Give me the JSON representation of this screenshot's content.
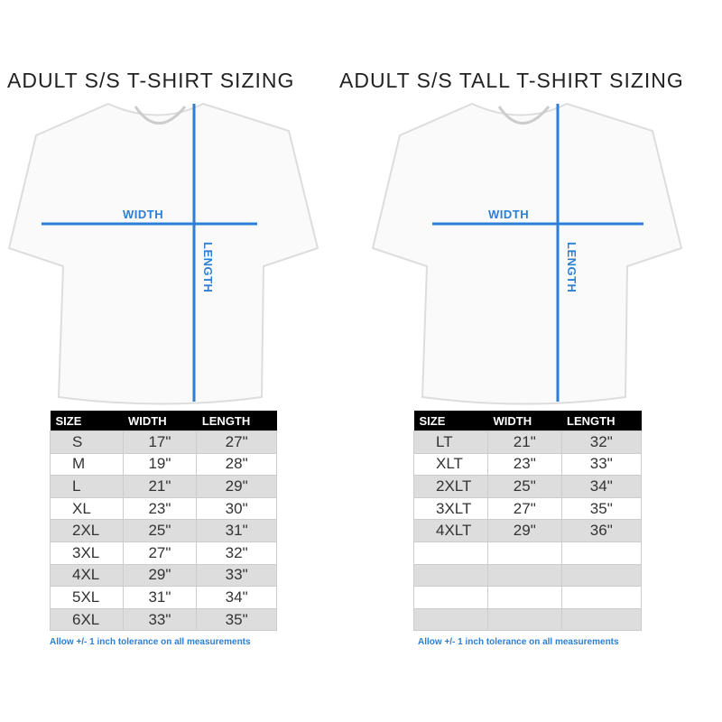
{
  "left": {
    "title": "ADULT S/S T-SHIRT SIZING",
    "width_label": "WIDTH",
    "length_label": "LENGTH",
    "headers": [
      "SIZE",
      "WIDTH",
      "LENGTH"
    ],
    "rows": [
      [
        "S",
        "17\"",
        "27\""
      ],
      [
        "M",
        "19\"",
        "28\""
      ],
      [
        "L",
        "21\"",
        "29\""
      ],
      [
        "XL",
        "23\"",
        "30\""
      ],
      [
        "2XL",
        "25\"",
        "31\""
      ],
      [
        "3XL",
        "27\"",
        "32\""
      ],
      [
        "4XL",
        "29\"",
        "33\""
      ],
      [
        "5XL",
        "31\"",
        "34\""
      ],
      [
        "6XL",
        "33\"",
        "35\""
      ]
    ],
    "note": "Allow +/- 1 inch tolerance on all measurements"
  },
  "right": {
    "title": "ADULT S/S TALL T-SHIRT SIZING",
    "width_label": "WIDTH",
    "length_label": "LENGTH",
    "headers": [
      "SIZE",
      "WIDTH",
      "LENGTH"
    ],
    "rows": [
      [
        "LT",
        "21\"",
        "32\""
      ],
      [
        "XLT",
        "23\"",
        "33\""
      ],
      [
        "2XLT",
        "25\"",
        "34\""
      ],
      [
        "3XLT",
        "27\"",
        "35\""
      ],
      [
        "4XLT",
        "29\"",
        "36\""
      ],
      [
        "",
        "",
        ""
      ],
      [
        "",
        "",
        ""
      ],
      [
        "",
        "",
        ""
      ],
      [
        "",
        "",
        ""
      ]
    ],
    "note": "Allow +/- 1 inch tolerance on all measurements"
  },
  "colors": {
    "accent": "#2b7fd6",
    "header_bg": "#000000",
    "stripe": "#dddddd"
  }
}
